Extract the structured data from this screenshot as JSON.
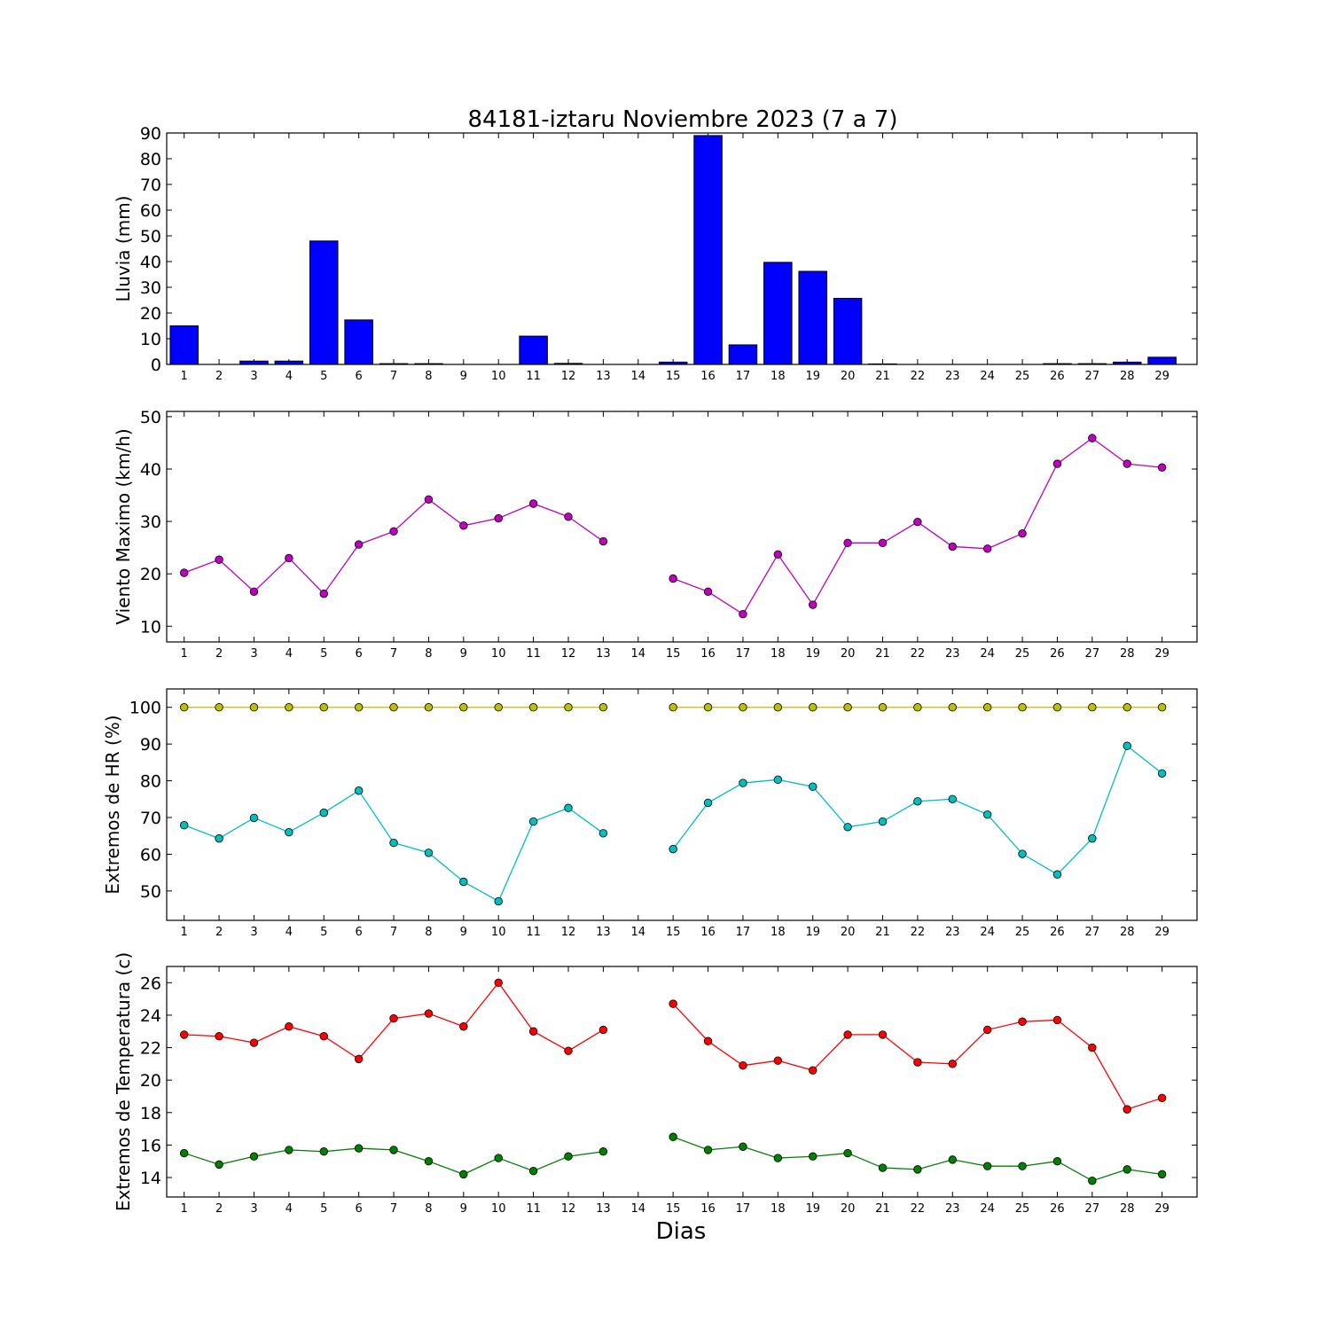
{
  "chart_data": {
    "title": "84181-iztaru Noviembre 2023  (7 a 7)",
    "xlabel": "Dias",
    "x_categories": [
      1,
      2,
      3,
      4,
      5,
      6,
      7,
      8,
      9,
      10,
      11,
      12,
      13,
      14,
      15,
      16,
      17,
      18,
      19,
      20,
      21,
      22,
      23,
      24,
      25,
      26,
      27,
      28,
      29
    ],
    "panels": [
      {
        "id": "rain",
        "type": "bar",
        "ylabel": "Lluvia (mm)",
        "ylim": [
          0,
          90
        ],
        "yticks": [
          0,
          10,
          20,
          30,
          40,
          50,
          60,
          70,
          80,
          90
        ],
        "series": [
          {
            "color": "#0000ff",
            "values": [
              15.0,
              0,
              1.3,
              1.3,
              48.0,
              17.3,
              0.3,
              0.3,
              0,
              0,
              11.0,
              0.4,
              0,
              0,
              0.9,
              89.0,
              7.6,
              39.7,
              36.2,
              25.7,
              0.2,
              0,
              0,
              0,
              0,
              0.3,
              0.3,
              0.9,
              2.8
            ]
          }
        ]
      },
      {
        "id": "wind",
        "type": "line",
        "ylabel": "Viento Maximo (km/h)",
        "ylim": [
          7,
          51
        ],
        "yticks": [
          10,
          20,
          30,
          40,
          50
        ],
        "series": [
          {
            "color": "#bf00bf",
            "values": [
              20.2,
              22.7,
              16.6,
              23.0,
              16.2,
              25.6,
              28.1,
              34.2,
              29.2,
              30.6,
              33.4,
              30.9,
              26.2,
              null,
              19.1,
              16.6,
              12.3,
              23.7,
              14.1,
              25.9,
              25.9,
              29.9,
              25.2,
              24.8,
              27.7,
              41.0,
              45.9,
              41.0,
              40.3
            ]
          }
        ]
      },
      {
        "id": "hr",
        "type": "line",
        "ylabel": "Extremos de HR (%)",
        "ylim": [
          42,
          105
        ],
        "yticks": [
          50,
          60,
          70,
          80,
          90,
          100
        ],
        "series": [
          {
            "color": "#bfbf00",
            "values": [
              100,
              100,
              100,
              100,
              100,
              100,
              100,
              100,
              100,
              100,
              100,
              100,
              100,
              null,
              100,
              100,
              100,
              100,
              100,
              100,
              100,
              100,
              100,
              100,
              100,
              100,
              100,
              100,
              100
            ]
          },
          {
            "color": "#00bfbf",
            "values": [
              67.9,
              64.3,
              69.9,
              66.0,
              71.3,
              77.3,
              63.1,
              60.4,
              52.5,
              47.2,
              68.9,
              72.6,
              65.7,
              null,
              61.4,
              74.0,
              79.4,
              80.3,
              78.4,
              67.4,
              68.9,
              74.4,
              75.0,
              70.8,
              60.1,
              54.5,
              64.3,
              89.5,
              82.0
            ]
          }
        ]
      },
      {
        "id": "temp",
        "type": "line",
        "ylabel": "Extremos de Temperatura (c)",
        "ylim": [
          12.8,
          27.0
        ],
        "yticks": [
          14,
          16,
          18,
          20,
          22,
          24,
          26
        ],
        "series": [
          {
            "color": "#ff0000",
            "values": [
              22.8,
              22.7,
              22.3,
              23.3,
              22.7,
              21.3,
              23.8,
              24.1,
              23.3,
              26.0,
              23.0,
              21.8,
              23.1,
              null,
              24.7,
              22.4,
              20.9,
              21.2,
              20.6,
              22.8,
              22.8,
              21.1,
              21.0,
              23.1,
              23.6,
              23.7,
              22.0,
              18.2,
              18.9
            ]
          },
          {
            "color": "#008000",
            "values": [
              15.5,
              14.8,
              15.3,
              15.7,
              15.6,
              15.8,
              15.7,
              15.0,
              14.2,
              15.2,
              14.4,
              15.3,
              15.6,
              null,
              16.5,
              15.7,
              15.9,
              15.2,
              15.3,
              15.5,
              14.6,
              14.5,
              15.1,
              14.7,
              14.7,
              15.0,
              13.8,
              14.5,
              14.2
            ]
          }
        ]
      }
    ]
  }
}
